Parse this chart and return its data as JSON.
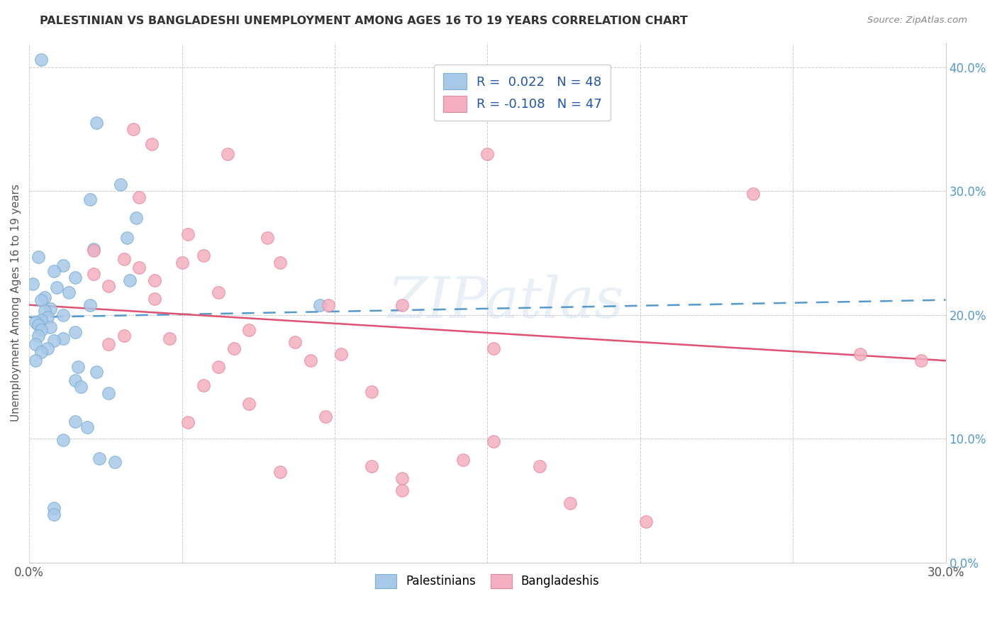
{
  "title": "PALESTINIAN VS BANGLADESHI UNEMPLOYMENT AMONG AGES 16 TO 19 YEARS CORRELATION CHART",
  "source": "Source: ZipAtlas.com",
  "ylabel": "Unemployment Among Ages 16 to 19 years",
  "xlim": [
    0.0,
    0.3
  ],
  "ylim": [
    0.0,
    0.42
  ],
  "legend_r_blue": "0.022",
  "legend_n_blue": "48",
  "legend_r_pink": "-0.108",
  "legend_n_pink": "47",
  "blue_color": "#a8c8e8",
  "pink_color": "#f4b0c0",
  "blue_edge_color": "#7bafd4",
  "pink_edge_color": "#e888a0",
  "trendline_blue_color": "#5599cc",
  "trendline_pink_color": "#e05070",
  "legend_text_color": "#2255aa",
  "watermark": "ZIPatlas",
  "blue_trendline": [
    [
      0.0,
      0.198
    ],
    [
      0.3,
      0.212
    ]
  ],
  "pink_trendline": [
    [
      0.0,
      0.208
    ],
    [
      0.3,
      0.163
    ]
  ],
  "blue_scatter": [
    [
      0.004,
      0.406
    ],
    [
      0.022,
      0.355
    ],
    [
      0.03,
      0.305
    ],
    [
      0.02,
      0.293
    ],
    [
      0.035,
      0.278
    ],
    [
      0.032,
      0.262
    ],
    [
      0.021,
      0.253
    ],
    [
      0.003,
      0.247
    ],
    [
      0.011,
      0.24
    ],
    [
      0.008,
      0.235
    ],
    [
      0.015,
      0.23
    ],
    [
      0.033,
      0.228
    ],
    [
      0.001,
      0.225
    ],
    [
      0.009,
      0.222
    ],
    [
      0.013,
      0.218
    ],
    [
      0.005,
      0.214
    ],
    [
      0.004,
      0.212
    ],
    [
      0.02,
      0.208
    ],
    [
      0.007,
      0.205
    ],
    [
      0.005,
      0.203
    ],
    [
      0.011,
      0.2
    ],
    [
      0.006,
      0.198
    ],
    [
      0.004,
      0.196
    ],
    [
      0.002,
      0.194
    ],
    [
      0.003,
      0.192
    ],
    [
      0.007,
      0.19
    ],
    [
      0.004,
      0.188
    ],
    [
      0.015,
      0.186
    ],
    [
      0.003,
      0.183
    ],
    [
      0.011,
      0.181
    ],
    [
      0.008,
      0.179
    ],
    [
      0.002,
      0.176
    ],
    [
      0.006,
      0.173
    ],
    [
      0.004,
      0.17
    ],
    [
      0.002,
      0.163
    ],
    [
      0.016,
      0.158
    ],
    [
      0.022,
      0.154
    ],
    [
      0.015,
      0.147
    ],
    [
      0.017,
      0.142
    ],
    [
      0.026,
      0.137
    ],
    [
      0.015,
      0.114
    ],
    [
      0.019,
      0.109
    ],
    [
      0.011,
      0.099
    ],
    [
      0.023,
      0.084
    ],
    [
      0.028,
      0.081
    ],
    [
      0.008,
      0.044
    ],
    [
      0.008,
      0.039
    ],
    [
      0.095,
      0.208
    ]
  ],
  "pink_scatter": [
    [
      0.034,
      0.35
    ],
    [
      0.04,
      0.338
    ],
    [
      0.065,
      0.33
    ],
    [
      0.15,
      0.33
    ],
    [
      0.036,
      0.295
    ],
    [
      0.052,
      0.265
    ],
    [
      0.078,
      0.262
    ],
    [
      0.021,
      0.252
    ],
    [
      0.057,
      0.248
    ],
    [
      0.031,
      0.245
    ],
    [
      0.05,
      0.242
    ],
    [
      0.082,
      0.242
    ],
    [
      0.036,
      0.238
    ],
    [
      0.021,
      0.233
    ],
    [
      0.041,
      0.228
    ],
    [
      0.026,
      0.223
    ],
    [
      0.062,
      0.218
    ],
    [
      0.041,
      0.213
    ],
    [
      0.098,
      0.208
    ],
    [
      0.122,
      0.208
    ],
    [
      0.072,
      0.188
    ],
    [
      0.031,
      0.183
    ],
    [
      0.046,
      0.181
    ],
    [
      0.087,
      0.178
    ],
    [
      0.026,
      0.176
    ],
    [
      0.067,
      0.173
    ],
    [
      0.152,
      0.173
    ],
    [
      0.102,
      0.168
    ],
    [
      0.092,
      0.163
    ],
    [
      0.062,
      0.158
    ],
    [
      0.057,
      0.143
    ],
    [
      0.112,
      0.138
    ],
    [
      0.072,
      0.128
    ],
    [
      0.097,
      0.118
    ],
    [
      0.052,
      0.113
    ],
    [
      0.152,
      0.098
    ],
    [
      0.142,
      0.083
    ],
    [
      0.112,
      0.078
    ],
    [
      0.167,
      0.078
    ],
    [
      0.082,
      0.073
    ],
    [
      0.122,
      0.068
    ],
    [
      0.122,
      0.058
    ],
    [
      0.177,
      0.048
    ],
    [
      0.202,
      0.033
    ],
    [
      0.272,
      0.168
    ],
    [
      0.237,
      0.298
    ],
    [
      0.292,
      0.163
    ]
  ]
}
